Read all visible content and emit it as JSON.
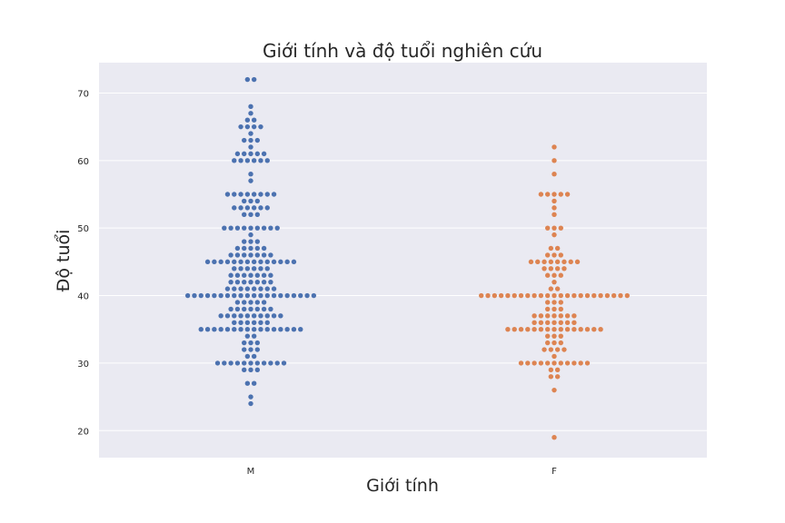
{
  "chart_data": {
    "type": "scatter",
    "subtype": "swarm",
    "title": "Giới tính và độ tuổi nghiên cứu",
    "xlabel": "Giới tính",
    "ylabel": "Độ tuổi",
    "categories": [
      "M",
      "F"
    ],
    "yticks": [
      20,
      30,
      40,
      50,
      60,
      70
    ],
    "ylim": [
      16,
      74.5
    ],
    "grid": true,
    "background_color": "#eaeaf2",
    "series": [
      {
        "category": "M",
        "color": "#4c72b0",
        "value_counts": [
          [
            24,
            1
          ],
          [
            25,
            1
          ],
          [
            27,
            2
          ],
          [
            29,
            3
          ],
          [
            30,
            11
          ],
          [
            31,
            2
          ],
          [
            32,
            3
          ],
          [
            33,
            3
          ],
          [
            34,
            2
          ],
          [
            35,
            16
          ],
          [
            36,
            6
          ],
          [
            37,
            10
          ],
          [
            38,
            7
          ],
          [
            39,
            5
          ],
          [
            40,
            20
          ],
          [
            41,
            8
          ],
          [
            42,
            7
          ],
          [
            43,
            7
          ],
          [
            44,
            6
          ],
          [
            45,
            14
          ],
          [
            46,
            7
          ],
          [
            47,
            5
          ],
          [
            48,
            3
          ],
          [
            49,
            1
          ],
          [
            50,
            9
          ],
          [
            52,
            3
          ],
          [
            53,
            6
          ],
          [
            54,
            3
          ],
          [
            55,
            8
          ],
          [
            57,
            1
          ],
          [
            58,
            1
          ],
          [
            60,
            6
          ],
          [
            61,
            5
          ],
          [
            62,
            1
          ],
          [
            63,
            3
          ],
          [
            64,
            1
          ],
          [
            65,
            4
          ],
          [
            66,
            2
          ],
          [
            67,
            1
          ],
          [
            68,
            1
          ],
          [
            72,
            2
          ]
        ]
      },
      {
        "category": "F",
        "color": "#dd8452",
        "value_counts": [
          [
            19,
            1
          ],
          [
            26,
            1
          ],
          [
            28,
            2
          ],
          [
            29,
            2
          ],
          [
            30,
            11
          ],
          [
            31,
            1
          ],
          [
            32,
            4
          ],
          [
            33,
            3
          ],
          [
            34,
            3
          ],
          [
            35,
            15
          ],
          [
            36,
            7
          ],
          [
            37,
            7
          ],
          [
            38,
            3
          ],
          [
            39,
            3
          ],
          [
            40,
            23
          ],
          [
            41,
            2
          ],
          [
            42,
            1
          ],
          [
            43,
            3
          ],
          [
            44,
            4
          ],
          [
            45,
            8
          ],
          [
            46,
            3
          ],
          [
            47,
            2
          ],
          [
            49,
            1
          ],
          [
            50,
            3
          ],
          [
            52,
            1
          ],
          [
            53,
            1
          ],
          [
            54,
            1
          ],
          [
            55,
            5
          ],
          [
            58,
            1
          ],
          [
            60,
            1
          ],
          [
            62,
            1
          ]
        ]
      }
    ]
  }
}
